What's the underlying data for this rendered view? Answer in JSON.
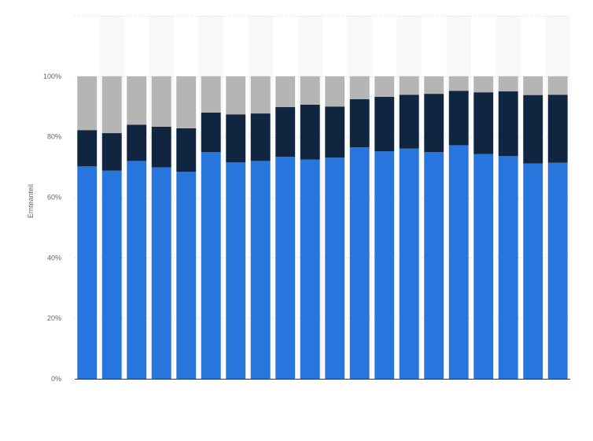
{
  "chart_data": {
    "type": "bar",
    "stacked": true,
    "title": "",
    "xlabel": "",
    "ylabel": "Ernteanteil",
    "ylim": [
      0,
      120
    ],
    "y_ticks": [
      "0%",
      "20%",
      "40%",
      "60%",
      "80%",
      "100%"
    ],
    "y_tick_values": [
      0,
      20,
      40,
      60,
      80,
      100
    ],
    "grid": true,
    "legend": "none",
    "categories": [
      "",
      "",
      "",
      "",
      "",
      "",
      "",
      "",
      "",
      "",
      "",
      "",
      "",
      "",
      "",
      "",
      "",
      "",
      "",
      ""
    ],
    "series": [
      {
        "color": "#2876dd",
        "values": [
          70.2,
          68.8,
          72.0,
          69.9,
          68.4,
          74.9,
          71.5,
          72.0,
          73.4,
          72.5,
          73.1,
          76.5,
          75.2,
          76.1,
          74.9,
          77.2,
          74.3,
          73.6,
          71.2,
          71.4
        ]
      },
      {
        "color": "#0f2540",
        "values": [
          12.0,
          12.4,
          12.0,
          13.4,
          14.4,
          13.1,
          15.9,
          15.7,
          16.4,
          18.1,
          16.9,
          15.9,
          18.0,
          17.8,
          19.3,
          18.0,
          20.4,
          21.4,
          22.6,
          22.5
        ]
      },
      {
        "color": "#b5b5b5",
        "values": [
          17.8,
          18.8,
          16.0,
          16.7,
          17.2,
          12.0,
          12.6,
          12.3,
          10.2,
          9.4,
          10.0,
          7.6,
          6.8,
          6.1,
          5.8,
          4.8,
          5.3,
          5.0,
          6.2,
          6.1
        ]
      }
    ]
  }
}
